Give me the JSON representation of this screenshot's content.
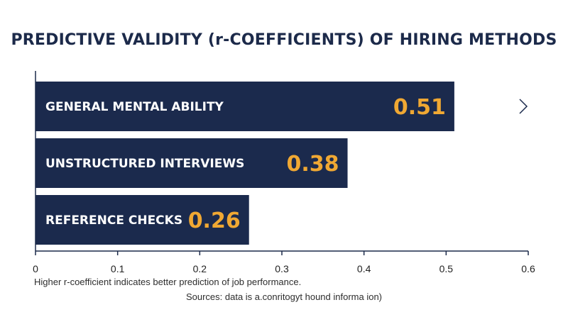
{
  "colors": {
    "bar": "#1b2a4d",
    "value": "#f0a833",
    "label": "#ffffff",
    "axis": "#1c2a4a",
    "arrow": "#1b2a4d"
  },
  "chart_data": {
    "type": "bar",
    "orientation": "horizontal",
    "title": "PREDICTIVE VALIDITY (r-COEFFICIENTS) OF HIRING METHODS",
    "categories": [
      "GENERAL MENTAL ABILITY",
      "UNSTRUCTURED INTERVIEWS",
      "REFERENCE CHECKS"
    ],
    "values": [
      0.51,
      0.38,
      0.26
    ],
    "value_labels": [
      "0.51",
      "0.38",
      "0.26"
    ],
    "xlim": [
      0,
      0.6
    ],
    "xticks": [
      "0",
      "0.1",
      "0.2",
      "0.3",
      "0.4",
      "0.5",
      "0.6"
    ],
    "grid": false,
    "annotation": "arrow pointing right after the top bar"
  },
  "footnote": "Higher r-coefficient indicates better prediction of job performance.",
  "sources": "Sources: data is a.conritogyt hound informa ion)"
}
